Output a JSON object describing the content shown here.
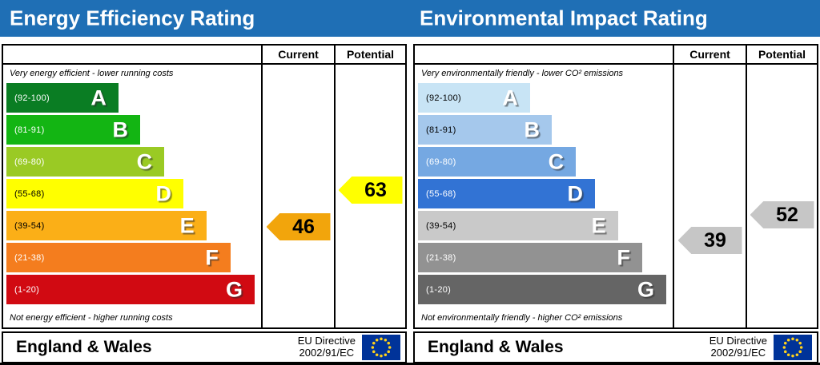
{
  "header": {
    "bg_color": "#1f6fb5",
    "text_color": "#ffffff"
  },
  "footer": {
    "region": "England & Wales",
    "directive_line1": "EU Directive",
    "directive_line2": "2002/91/EC",
    "eu_flag_icon": "eu-flag-icon",
    "eu_flag_bg": "#003399",
    "eu_flag_star_color": "#ffd21b"
  },
  "chart_data": [
    {
      "type": "bar",
      "title": "Energy Efficiency Rating",
      "columns": {
        "current": "Current",
        "potential": "Potential"
      },
      "top_caption": "Very energy efficient - lower running costs",
      "bottom_caption": "Not energy efficient - higher running costs",
      "bands": [
        {
          "letter": "A",
          "range_label": "(92-100)",
          "lo": 92,
          "hi": 100,
          "color": "#0a7d23",
          "label_color": "#ffffff",
          "width_pct": 44
        },
        {
          "letter": "B",
          "range_label": "(81-91)",
          "lo": 81,
          "hi": 91,
          "color": "#13b513",
          "label_color": "#ffffff",
          "width_pct": 52.5
        },
        {
          "letter": "C",
          "range_label": "(69-80)",
          "lo": 69,
          "hi": 80,
          "color": "#9aca24",
          "label_color": "#ffffff",
          "width_pct": 62
        },
        {
          "letter": "D",
          "range_label": "(55-68)",
          "lo": 55,
          "hi": 68,
          "color": "#ffff00",
          "label_color": "#000000",
          "width_pct": 69.5
        },
        {
          "letter": "E",
          "range_label": "(39-54)",
          "lo": 39,
          "hi": 54,
          "color": "#fbaf17",
          "label_color": "#000000",
          "width_pct": 78.5
        },
        {
          "letter": "F",
          "range_label": "(21-38)",
          "lo": 21,
          "hi": 38,
          "color": "#f47d1e",
          "label_color": "#ffffff",
          "width_pct": 88
        },
        {
          "letter": "G",
          "range_label": "(1-20)",
          "lo": 1,
          "hi": 20,
          "color": "#d10a12",
          "label_color": "#ffffff",
          "width_pct": 97.5
        }
      ],
      "current": {
        "value": 46,
        "arrow_color": "#f2a50c",
        "text_color": "#000000"
      },
      "potential": {
        "value": 63,
        "arrow_color": "#ffff00",
        "text_color": "#000000"
      }
    },
    {
      "type": "bar",
      "title": "Environmental Impact Rating",
      "columns": {
        "current": "Current",
        "potential": "Potential"
      },
      "top_caption": "Very environmentally friendly - lower CO² emissions",
      "bottom_caption": "Not environmentally friendly - higher CO² emissions",
      "bands": [
        {
          "letter": "A",
          "range_label": "(92-100)",
          "lo": 92,
          "hi": 100,
          "color": "#c8e4f5",
          "label_color": "#000000",
          "width_pct": 44
        },
        {
          "letter": "B",
          "range_label": "(81-91)",
          "lo": 81,
          "hi": 91,
          "color": "#a5c8ec",
          "label_color": "#000000",
          "width_pct": 52.5
        },
        {
          "letter": "C",
          "range_label": "(69-80)",
          "lo": 69,
          "hi": 80,
          "color": "#75a8e2",
          "label_color": "#ffffff",
          "width_pct": 62
        },
        {
          "letter": "D",
          "range_label": "(55-68)",
          "lo": 55,
          "hi": 68,
          "color": "#3273d4",
          "label_color": "#ffffff",
          "width_pct": 69.5
        },
        {
          "letter": "E",
          "range_label": "(39-54)",
          "lo": 39,
          "hi": 54,
          "color": "#c9c9c9",
          "label_color": "#000000",
          "width_pct": 78.5
        },
        {
          "letter": "F",
          "range_label": "(21-38)",
          "lo": 21,
          "hi": 38,
          "color": "#929292",
          "label_color": "#ffffff",
          "width_pct": 88
        },
        {
          "letter": "G",
          "range_label": "(1-20)",
          "lo": 1,
          "hi": 20,
          "color": "#656565",
          "label_color": "#ffffff",
          "width_pct": 97.5
        }
      ],
      "current": {
        "value": 39,
        "arrow_color": "#c6c6c6",
        "text_color": "#000000"
      },
      "potential": {
        "value": 52,
        "arrow_color": "#c6c6c6",
        "text_color": "#000000"
      }
    }
  ]
}
